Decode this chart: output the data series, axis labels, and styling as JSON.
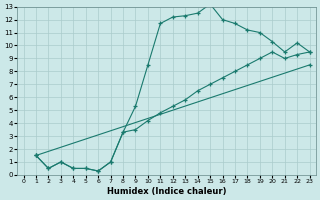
{
  "xlabel": "Humidex (Indice chaleur)",
  "bg_color": "#cce8e8",
  "grid_color": "#aacccc",
  "line_color": "#1a7a6e",
  "xlim": [
    -0.5,
    23.5
  ],
  "ylim": [
    0,
    13
  ],
  "xticks": [
    0,
    1,
    2,
    3,
    4,
    5,
    6,
    7,
    8,
    9,
    10,
    11,
    12,
    13,
    14,
    15,
    16,
    17,
    18,
    19,
    20,
    21,
    22,
    23
  ],
  "yticks": [
    0,
    1,
    2,
    3,
    4,
    5,
    6,
    7,
    8,
    9,
    10,
    11,
    12,
    13
  ],
  "line1_x": [
    1,
    2,
    3,
    4,
    5,
    6,
    7,
    8,
    9,
    10,
    11,
    12,
    13,
    14,
    15,
    16,
    17,
    18,
    19,
    20,
    21,
    22,
    23
  ],
  "line1_y": [
    1.5,
    0.5,
    1.0,
    0.5,
    0.5,
    0.3,
    1.0,
    3.3,
    5.3,
    8.5,
    11.7,
    12.2,
    12.3,
    12.5,
    13.2,
    12.0,
    11.7,
    11.2,
    11.0,
    10.3,
    9.5,
    10.2,
    9.5
  ],
  "line2_x": [
    1,
    2,
    3,
    4,
    5,
    6,
    7,
    8,
    9,
    10,
    11,
    12,
    13,
    14,
    15,
    16,
    17,
    18,
    19,
    20,
    21,
    22,
    23
  ],
  "line2_y": [
    1.5,
    0.5,
    1.0,
    0.5,
    0.5,
    0.3,
    1.0,
    3.3,
    3.5,
    4.2,
    4.8,
    5.3,
    5.8,
    6.5,
    7.0,
    7.5,
    8.0,
    8.5,
    9.0,
    9.5,
    9.0,
    9.3,
    9.5
  ],
  "line3_x": [
    1,
    23
  ],
  "line3_y": [
    1.5,
    8.5
  ]
}
